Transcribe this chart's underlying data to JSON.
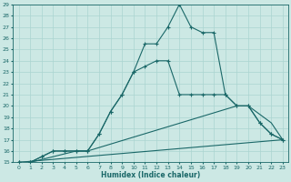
{
  "xlabel": "Humidex (Indice chaleur)",
  "xlim": [
    -0.5,
    23.5
  ],
  "ylim": [
    15,
    29
  ],
  "background_color": "#cce8e4",
  "grid_color": "#aad4d0",
  "line_color": "#1a6868",
  "line1_x": [
    0,
    1,
    2,
    3,
    4,
    5,
    6,
    7,
    8,
    9,
    10,
    11,
    12,
    13,
    14,
    15,
    16,
    17,
    18,
    19,
    20,
    21,
    22,
    23
  ],
  "line1_y": [
    15,
    15,
    15.5,
    16,
    16,
    16,
    16,
    17.5,
    19.5,
    21,
    23,
    25.5,
    25.5,
    27,
    29,
    27,
    26.5,
    26.5,
    21,
    20,
    20,
    18.5,
    17.5,
    17
  ],
  "line2_x": [
    0,
    1,
    2,
    3,
    4,
    5,
    6,
    7,
    8,
    9,
    10,
    11,
    12,
    13,
    14,
    15,
    16,
    17,
    18,
    19,
    20,
    21,
    22,
    23
  ],
  "line2_y": [
    15,
    15,
    15.5,
    16,
    16,
    16,
    16,
    17.5,
    19.5,
    21,
    23,
    23.5,
    24,
    24,
    21,
    21,
    21,
    21,
    21,
    20,
    20,
    18.5,
    17.5,
    17
  ],
  "line3_x": [
    0,
    1,
    5,
    6,
    19,
    20,
    22,
    23
  ],
  "line3_y": [
    15,
    15,
    16,
    16,
    20,
    20,
    18.5,
    17
  ],
  "line4_x": [
    0,
    23
  ],
  "line4_y": [
    15,
    17
  ]
}
